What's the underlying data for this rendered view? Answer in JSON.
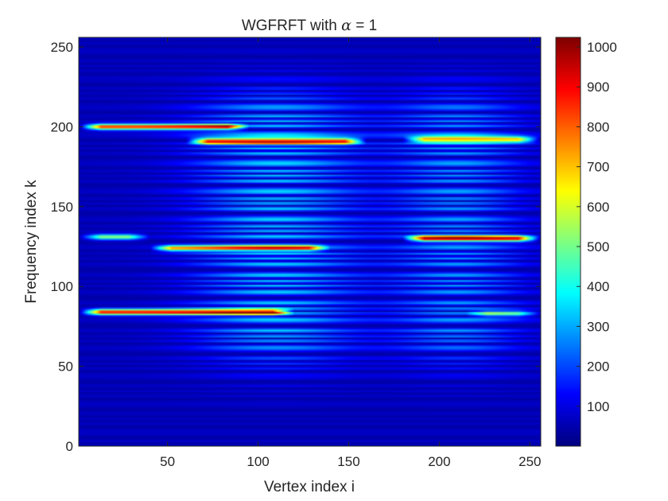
{
  "chart_data": {
    "type": "heatmap",
    "title_prefix": "WGFRFT with ",
    "title_symbol": "α",
    "title_suffix": " = 1",
    "xlabel": "Vertex index i",
    "ylabel": "Frequency index k",
    "xlim": [
      1,
      256
    ],
    "ylim": [
      0,
      256
    ],
    "xticks": [
      50,
      100,
      150,
      200,
      250
    ],
    "yticks": [
      0,
      50,
      100,
      150,
      200,
      250
    ],
    "colorbar": {
      "colormap": "jet",
      "range": [
        0,
        1024
      ],
      "ticks": [
        100,
        200,
        300,
        400,
        500,
        600,
        700,
        800,
        900,
        1000
      ]
    },
    "features": [
      {
        "k": 200,
        "i_from": 1,
        "i_to": 95,
        "peak": 800
      },
      {
        "k": 191,
        "i_from": 60,
        "i_to": 160,
        "peak": 850
      },
      {
        "k": 192,
        "i_from": 180,
        "i_to": 256,
        "peak": 650
      },
      {
        "k": 131,
        "i_from": 1,
        "i_to": 40,
        "peak": 450
      },
      {
        "k": 130,
        "i_from": 180,
        "i_to": 256,
        "peak": 850
      },
      {
        "k": 124,
        "i_from": 40,
        "i_to": 140,
        "peak": 650
      },
      {
        "k": 84,
        "i_from": 1,
        "i_to": 120,
        "peak": 850
      },
      {
        "k": 83,
        "i_from": 215,
        "i_to": 256,
        "peak": 350
      }
    ]
  }
}
